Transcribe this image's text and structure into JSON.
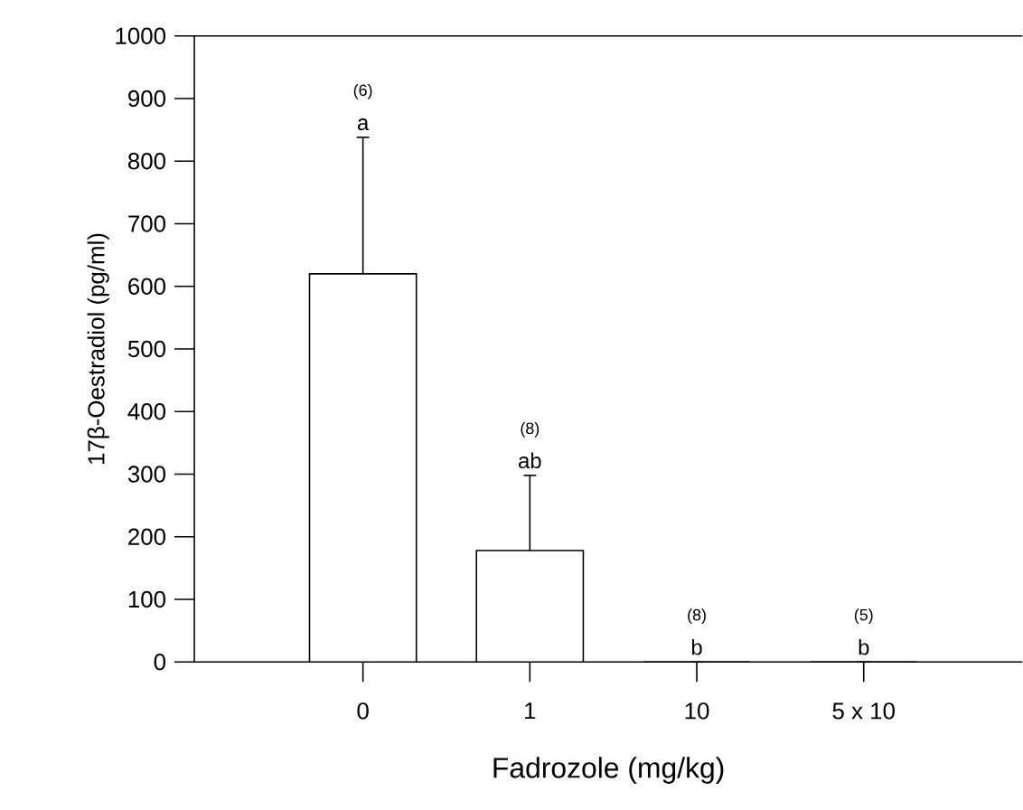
{
  "chart_data": {
    "type": "bar",
    "xlabel": "Fadrozole (mg/kg)",
    "ylabel": "17β-Oestradiol (pg/ml)",
    "categories": [
      "0",
      "1",
      "10",
      "5 x 10"
    ],
    "values": [
      620,
      178,
      0,
      0
    ],
    "color": "#ffffff",
    "errors": [
      [
        620,
        838
      ],
      [
        178,
        298
      ],
      null,
      null
    ],
    "ylim": [
      0,
      1000
    ],
    "yticks": [
      0,
      100,
      200,
      300,
      400,
      500,
      600,
      700,
      800,
      900,
      1000
    ],
    "annotations": [
      "(6)",
      "a",
      "(8)",
      "ab",
      "(8)",
      "b",
      "(5)",
      "b"
    ]
  }
}
